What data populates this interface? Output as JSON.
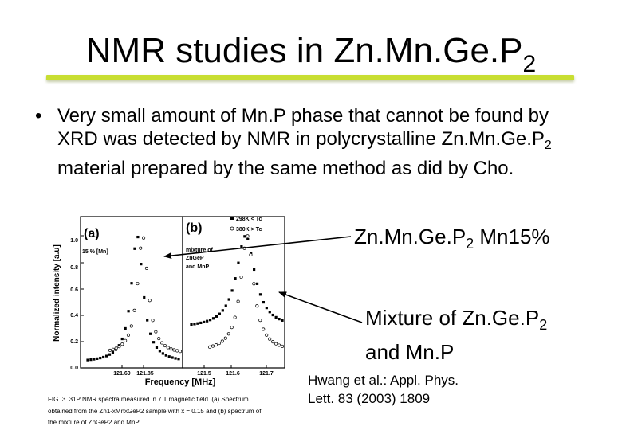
{
  "title": {
    "main": "NMR studies in Zn.Mn.Ge.P",
    "sub": "2"
  },
  "bullet": {
    "symbol": "•",
    "line_a": "Very small amount of Mn.P phase that cannot be found by XRD was detected by NMR in polycrystalline Zn.Mn.Ge.P",
    "sub": "2",
    "line_b": " material prepared by the same method as did by Cho."
  },
  "label1": {
    "text": "Zn.Mn.Ge.P",
    "sub": "2",
    "rest": " Mn15%"
  },
  "label2": {
    "text": "Mixture of Zn.Ge.P",
    "sub": "2",
    "rest": "and Mn.P"
  },
  "reference": {
    "line1": "Hwang et al.: Appl. Phys.",
    "line2": "Lett. 83 (2003) 1809"
  },
  "figure": {
    "panel_a": "(a)",
    "panel_b": "(b)",
    "panel_a_note": "15 % [Mn]",
    "panel_b_note": [
      "mixture of",
      "ZnGeP",
      "and MnP"
    ],
    "legend": [
      "298K < Tc",
      "380K > Tc"
    ],
    "ylabel": "Normalized intensity [a.u]",
    "xlabel": "Frequency [MHz]",
    "yticks": [
      "1.0",
      "0.8",
      "0.6",
      "0.4",
      "0.2",
      "0.0"
    ],
    "xticks_a": [
      "121.60",
      "121.85"
    ],
    "xticks_b": [
      "121.5",
      "121.6",
      "121.7"
    ],
    "caption_lines": [
      "FIG. 3.  31P NMR spectra measured in 7 T magnetic field. (a) Spectrum",
      "obtained from the Zn1-xMnxGeP2 sample with x = 0.15 and (b) spectrum of",
      "the mixture of ZnGeP2 and MnP."
    ]
  },
  "colors": {
    "underline": "#c8de32",
    "text": "#000000"
  }
}
